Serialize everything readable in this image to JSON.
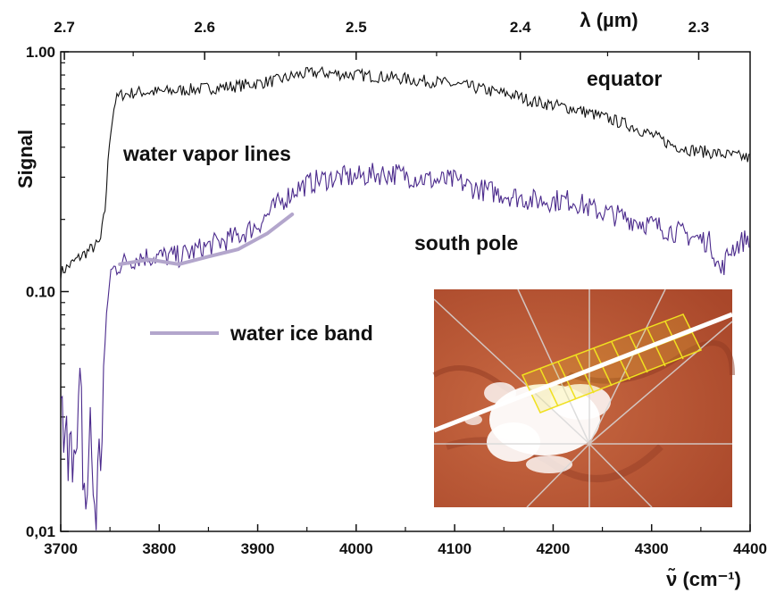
{
  "chart_data": {
    "type": "line",
    "xlabel": "ν̃ (cm⁻¹)",
    "ylabel": "Signal",
    "top_axis_label": "λ (µm)",
    "xlim": [
      3700,
      4400
    ],
    "ylim": [
      0.01,
      1.0
    ],
    "y_scale": "log",
    "x_ticks": [
      "3700",
      "3800",
      "3900",
      "4000",
      "4100",
      "4200",
      "4300",
      "4400"
    ],
    "y_ticks": [
      {
        "value": 1.0,
        "label": "1.00"
      },
      {
        "value": 0.1,
        "label": "0.10"
      },
      {
        "value": 0.01,
        "label": "0,01"
      }
    ],
    "top_ticks": [
      "2.7",
      "2.6",
      "2.5",
      "2.4",
      "2.3"
    ],
    "top_tick_values": [
      2.7,
      2.6,
      2.5,
      2.4,
      2.3
    ],
    "grid": false,
    "annotations": {
      "equator": "equator",
      "vapor": "water vapor lines",
      "south": "south pole",
      "ice": "water ice band"
    },
    "series": [
      {
        "name": "equator",
        "color": "#111111",
        "x": [
          3700,
          3720,
          3740,
          3745,
          3750,
          3755,
          3760,
          3780,
          3800,
          3820,
          3840,
          3860,
          3880,
          3900,
          3920,
          3940,
          3960,
          3980,
          4000,
          4020,
          4040,
          4060,
          4080,
          4100,
          4120,
          4140,
          4160,
          4180,
          4200,
          4220,
          4240,
          4260,
          4280,
          4300,
          4320,
          4340,
          4360,
          4380,
          4400
        ],
        "y": [
          0.12,
          0.14,
          0.16,
          0.22,
          0.45,
          0.62,
          0.66,
          0.68,
          0.68,
          0.69,
          0.7,
          0.71,
          0.72,
          0.74,
          0.76,
          0.8,
          0.82,
          0.81,
          0.8,
          0.79,
          0.78,
          0.76,
          0.75,
          0.73,
          0.71,
          0.68,
          0.66,
          0.62,
          0.6,
          0.58,
          0.55,
          0.52,
          0.49,
          0.45,
          0.41,
          0.39,
          0.38,
          0.37,
          0.36
        ]
      },
      {
        "name": "south pole",
        "color": "#4b2a8c",
        "x": [
          3700,
          3705,
          3710,
          3715,
          3720,
          3725,
          3730,
          3735,
          3740,
          3745,
          3750,
          3760,
          3780,
          3800,
          3820,
          3840,
          3860,
          3880,
          3900,
          3920,
          3940,
          3960,
          3980,
          4000,
          4020,
          4040,
          4060,
          4080,
          4100,
          4120,
          4140,
          4160,
          4180,
          4200,
          4220,
          4240,
          4260,
          4280,
          4300,
          4320,
          4340,
          4360,
          4370,
          4380,
          4400
        ],
        "y": [
          0.03,
          0.018,
          0.04,
          0.015,
          0.035,
          0.012,
          0.025,
          0.012,
          0.02,
          0.06,
          0.12,
          0.13,
          0.14,
          0.14,
          0.14,
          0.15,
          0.16,
          0.17,
          0.19,
          0.23,
          0.27,
          0.29,
          0.3,
          0.3,
          0.31,
          0.31,
          0.3,
          0.29,
          0.29,
          0.27,
          0.26,
          0.25,
          0.24,
          0.24,
          0.24,
          0.22,
          0.21,
          0.2,
          0.19,
          0.18,
          0.17,
          0.16,
          0.12,
          0.15,
          0.17
        ]
      },
      {
        "name": "water ice band",
        "color": "#b3a6cc",
        "x": [
          3760,
          3790,
          3820,
          3850,
          3880,
          3910,
          3935
        ],
        "y": [
          0.13,
          0.136,
          0.13,
          0.14,
          0.15,
          0.175,
          0.21
        ]
      }
    ]
  },
  "inset": {
    "description_colors": {
      "terrain": "#b85a35",
      "ice": "#ffffff",
      "grid_box": "#f0e020",
      "track_line": "#ffffff"
    }
  }
}
